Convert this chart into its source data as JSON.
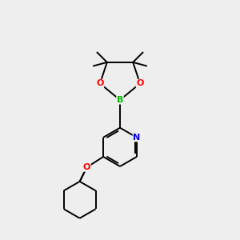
{
  "background_color": "#eeeeee",
  "bond_color": "#000000",
  "atom_colors": {
    "B": "#00bb00",
    "O": "#ff0000",
    "N": "#0000ee",
    "C": "#000000"
  },
  "figsize": [
    3.0,
    3.0
  ],
  "dpi": 100,
  "line_width": 1.4
}
